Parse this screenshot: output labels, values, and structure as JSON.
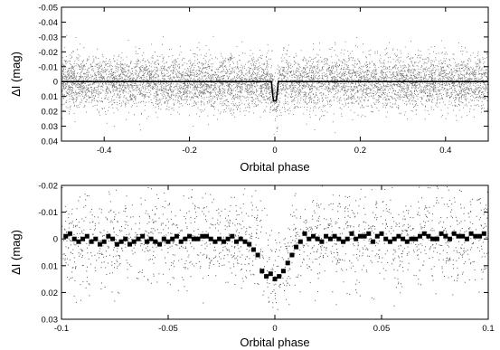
{
  "chart_data": [
    {
      "type": "scatter",
      "title": "",
      "xlabel": "Orbital phase",
      "ylabel": "ΔI (mag)",
      "xlim": [
        -0.5,
        0.5
      ],
      "ylim": [
        0.04,
        -0.05
      ],
      "y_inverted": true,
      "grid": false,
      "xticks": [
        -0.4,
        -0.2,
        0,
        0.2,
        0.4
      ],
      "xtick_labels": [
        "-0.4",
        "-0.2",
        "0",
        "0.2",
        "0.4"
      ],
      "yticks": [
        -0.05,
        -0.04,
        -0.03,
        -0.02,
        -0.01,
        0,
        0.01,
        0.02,
        0.03,
        0.04
      ],
      "ytick_labels": [
        "-0.05",
        "-0.04",
        "-0.03",
        "-0.02",
        "-0.01",
        "0",
        "0.01",
        "0.02",
        "0.03",
        "0.04"
      ],
      "point_color": "#707070",
      "line_color": "#000000",
      "series": [
        {
          "kind": "points",
          "description_values": "dense photometric points, approx. 10000, scatter about 0.01 mag around 0, narrow transit dip near phase 0 to about 0.015 mag",
          "baseline": 0.0,
          "scatter_sigma": 0.009,
          "transit_center": 0.0,
          "transit_depth": 0.013
        },
        {
          "kind": "model-line",
          "x": [
            -0.5,
            -0.008,
            -0.005,
            -0.003,
            0.003,
            0.005,
            0.008,
            0.5
          ],
          "y": [
            0,
            0,
            0.009,
            0.013,
            0.013,
            0.009,
            0,
            0
          ]
        }
      ]
    },
    {
      "type": "scatter",
      "title": "",
      "xlabel": "Orbital phase",
      "ylabel": "ΔI (mag)",
      "xlim": [
        -0.1,
        0.1
      ],
      "ylim": [
        0.03,
        -0.02
      ],
      "y_inverted": true,
      "grid": false,
      "xticks": [
        -0.1,
        -0.05,
        0,
        0.05,
        0.1
      ],
      "xtick_labels": [
        "-0.1",
        "-0.05",
        "0",
        "0.05",
        "0.1"
      ],
      "yticks": [
        -0.02,
        -0.01,
        0,
        0.01,
        0.02,
        0.03
      ],
      "ytick_labels": [
        "-0.02",
        "-0.01",
        "0",
        "0.01",
        "0.02",
        "0.03"
      ],
      "point_color": "#555555",
      "binned_color": "#000000",
      "series": [
        {
          "kind": "points",
          "description_values": "individual photometric points, approx. 2000, scatter about 0.009 mag",
          "scatter_sigma": 0.0085
        },
        {
          "kind": "binned",
          "name": "",
          "x": [
            -0.098,
            -0.096,
            -0.094,
            -0.092,
            -0.09,
            -0.088,
            -0.086,
            -0.084,
            -0.082,
            -0.08,
            -0.078,
            -0.076,
            -0.074,
            -0.072,
            -0.07,
            -0.068,
            -0.066,
            -0.064,
            -0.062,
            -0.06,
            -0.058,
            -0.056,
            -0.054,
            -0.052,
            -0.05,
            -0.048,
            -0.046,
            -0.044,
            -0.042,
            -0.04,
            -0.038,
            -0.036,
            -0.034,
            -0.032,
            -0.03,
            -0.028,
            -0.026,
            -0.024,
            -0.022,
            -0.02,
            -0.018,
            -0.016,
            -0.014,
            -0.012,
            -0.01,
            -0.008,
            -0.006,
            -0.004,
            -0.002,
            0.0,
            0.002,
            0.004,
            0.006,
            0.008,
            0.01,
            0.012,
            0.014,
            0.016,
            0.018,
            0.02,
            0.022,
            0.024,
            0.026,
            0.028,
            0.03,
            0.032,
            0.034,
            0.036,
            0.038,
            0.04,
            0.042,
            0.044,
            0.046,
            0.048,
            0.05,
            0.052,
            0.054,
            0.056,
            0.058,
            0.06,
            0.062,
            0.064,
            0.066,
            0.068,
            0.07,
            0.072,
            0.074,
            0.076,
            0.078,
            0.08,
            0.082,
            0.084,
            0.086,
            0.088,
            0.09,
            0.092,
            0.094,
            0.096,
            0.098
          ],
          "y": [
            -0.001,
            -0.002,
            0.0,
            0.001,
            0.0,
            -0.001,
            0.001,
            0.0,
            0.002,
            0.001,
            -0.001,
            0.0,
            0.002,
            0.001,
            0.0,
            0.002,
            0.001,
            0.0,
            -0.001,
            0.001,
            0.0,
            0.001,
            0.002,
            0.0,
            0.001,
            0.0,
            -0.001,
            0.001,
            0.0,
            -0.001,
            0.0,
            0.0,
            -0.001,
            -0.001,
            0.0,
            0.001,
            0.0,
            0.001,
            0.0,
            -0.001,
            0.001,
            0.0,
            0.001,
            0.002,
            0.004,
            0.006,
            0.012,
            0.014,
            0.013,
            0.015,
            0.014,
            0.012,
            0.009,
            0.006,
            0.003,
            0.001,
            -0.002,
            0.0,
            -0.001,
            0.0,
            0.001,
            -0.001,
            0.0,
            -0.001,
            0.0,
            0.001,
            0.0,
            -0.002,
            0.0,
            -0.001,
            -0.001,
            -0.002,
            0.001,
            -0.001,
            -0.002,
            0.0,
            0.001,
            0.0,
            -0.001,
            0.0,
            0.001,
            0.0,
            0.0,
            -0.001,
            -0.002,
            -0.001,
            0.0,
            0.0,
            -0.002,
            -0.001,
            0.0,
            -0.002,
            -0.001,
            -0.001,
            0.0,
            -0.002,
            -0.001,
            -0.001,
            -0.002
          ]
        }
      ]
    }
  ]
}
